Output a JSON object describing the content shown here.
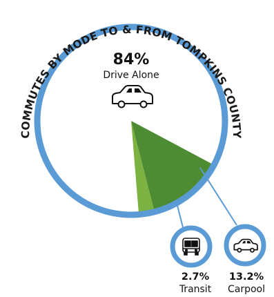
{
  "chart_data": {
    "type": "pie",
    "title": "COMMUTES BY MODE TO & FROM TOMPKINS COUNTY",
    "slices": [
      {
        "label": "Drive Alone",
        "value": 84,
        "display": "84%",
        "color": "#ffffff",
        "icon": "car-icon"
      },
      {
        "label": "Carpool",
        "value": 13.2,
        "display": "13.2%",
        "color": "#4e8c33",
        "icon": "car-icon"
      },
      {
        "label": "Transit",
        "value": 2.7,
        "display": "2.7%",
        "color": "#7bb241",
        "icon": "bus-icon"
      }
    ]
  },
  "colors": {
    "ring": "#5b9bd5",
    "carpool": "#4e8c33",
    "transit": "#7bb241",
    "text": "#111111"
  }
}
